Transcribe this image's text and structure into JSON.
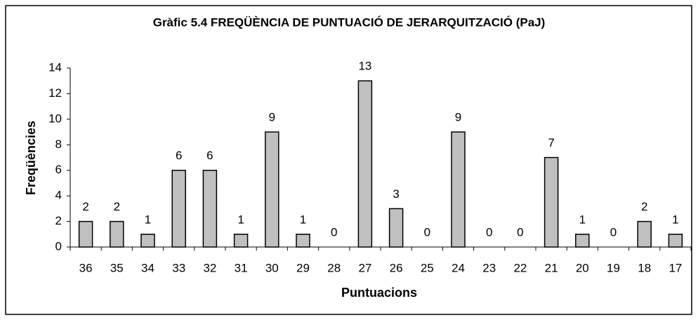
{
  "chart_data": {
    "type": "bar",
    "title": "Gràfic 5.4 FREQÜÈNCIA DE PUNTUACIÓ DE JERARQUITZACIÓ (PaJ)",
    "x_label": "Puntuacions",
    "y_label": "Freqüències",
    "categories": [
      "36",
      "35",
      "34",
      "33",
      "32",
      "31",
      "30",
      "29",
      "28",
      "27",
      "26",
      "25",
      "24",
      "23",
      "22",
      "21",
      "20",
      "19",
      "18",
      "17"
    ],
    "values": [
      2,
      2,
      1,
      6,
      6,
      1,
      9,
      1,
      0,
      13,
      3,
      0,
      9,
      0,
      0,
      7,
      1,
      0,
      2,
      1
    ],
    "color": "#c0c0c0",
    "ylim": [
      0,
      14
    ],
    "yticks": [
      0,
      2,
      4,
      6,
      8,
      10,
      12,
      14
    ],
    "grid": false
  }
}
